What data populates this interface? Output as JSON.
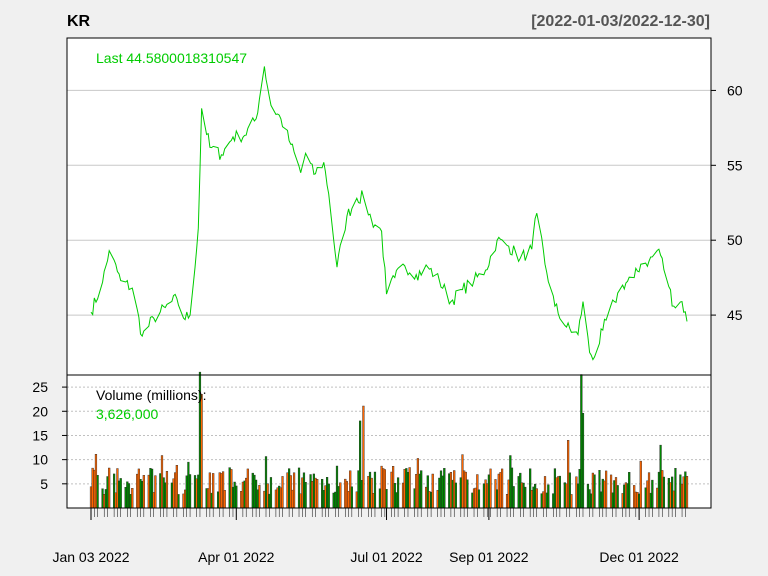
{
  "header": {
    "symbol": "KR",
    "date_range": "[2022-01-03/2022-12-30]"
  },
  "chart_data": [
    {
      "type": "line",
      "name": "price-panel",
      "last_label": "Last 44.5800018310547",
      "color": "#00cc00",
      "ylim": [
        41,
        63.5
      ],
      "yticks": [
        45,
        50,
        55,
        60
      ],
      "x_range": [
        "2022-01-03",
        "2022-12-30"
      ],
      "grid": true,
      "anchors": [
        [
          "2022-01-03",
          45.2
        ],
        [
          "2022-01-10",
          47.2
        ],
        [
          "2022-01-14",
          49.3
        ],
        [
          "2022-01-21",
          47.3
        ],
        [
          "2022-01-28",
          46.8
        ],
        [
          "2022-02-03",
          43.6
        ],
        [
          "2022-02-10",
          44.8
        ],
        [
          "2022-02-17",
          45.5
        ],
        [
          "2022-02-24",
          46.1
        ],
        [
          "2022-02-28",
          44.8
        ],
        [
          "2022-03-04",
          45.0
        ],
        [
          "2022-03-09",
          50.8
        ],
        [
          "2022-03-11",
          58.8
        ],
        [
          "2022-03-16",
          56.2
        ],
        [
          "2022-03-23",
          55.7
        ],
        [
          "2022-03-30",
          56.9
        ],
        [
          "2022-04-06",
          57.0
        ],
        [
          "2022-04-13",
          58.1
        ],
        [
          "2022-04-18",
          61.6
        ],
        [
          "2022-04-22",
          59.0
        ],
        [
          "2022-04-28",
          58.1
        ],
        [
          "2022-05-04",
          56.4
        ],
        [
          "2022-05-10",
          54.5
        ],
        [
          "2022-05-13",
          55.8
        ],
        [
          "2022-05-18",
          54.4
        ],
        [
          "2022-05-24",
          55.2
        ],
        [
          "2022-05-27",
          53.1
        ],
        [
          "2022-06-01",
          48.2
        ],
        [
          "2022-06-07",
          51.6
        ],
        [
          "2022-06-13",
          52.8
        ],
        [
          "2022-06-17",
          52.9
        ],
        [
          "2022-06-22",
          51.3
        ],
        [
          "2022-06-28",
          50.6
        ],
        [
          "2022-07-01",
          46.4
        ],
        [
          "2022-07-06",
          47.5
        ],
        [
          "2022-07-12",
          48.3
        ],
        [
          "2022-07-19",
          47.7
        ],
        [
          "2022-07-26",
          48.2
        ],
        [
          "2022-08-02",
          47.3
        ],
        [
          "2022-08-09",
          45.9
        ],
        [
          "2022-08-16",
          46.7
        ],
        [
          "2022-08-23",
          47.3
        ],
        [
          "2022-08-30",
          48.0
        ],
        [
          "2022-09-06",
          50.0
        ],
        [
          "2022-09-13",
          49.6
        ],
        [
          "2022-09-20",
          48.8
        ],
        [
          "2022-09-27",
          49.4
        ],
        [
          "2022-09-30",
          51.8
        ],
        [
          "2022-10-05",
          48.4
        ],
        [
          "2022-10-11",
          45.6
        ],
        [
          "2022-10-18",
          44.2
        ],
        [
          "2022-10-25",
          43.7
        ],
        [
          "2022-10-28",
          45.9
        ],
        [
          "2022-11-01",
          42.5
        ],
        [
          "2022-11-04",
          42.2
        ],
        [
          "2022-11-09",
          44.0
        ],
        [
          "2022-11-16",
          45.9
        ],
        [
          "2022-11-21",
          47.0
        ],
        [
          "2022-11-28",
          47.5
        ],
        [
          "2022-12-02",
          48.4
        ],
        [
          "2022-12-07",
          48.6
        ],
        [
          "2022-12-13",
          49.4
        ],
        [
          "2022-12-19",
          46.9
        ],
        [
          "2022-12-22",
          45.6
        ],
        [
          "2022-12-27",
          45.9
        ],
        [
          "2022-12-30",
          44.58
        ]
      ]
    },
    {
      "type": "bar",
      "name": "volume-panel",
      "title": "Volume (millions):",
      "last_label": "3,626,000",
      "up_color": "#008800",
      "down_color": "#ff6600",
      "ylim": [
        0,
        27.5
      ],
      "yticks": [
        5,
        10,
        15,
        20,
        25
      ],
      "spikes": [
        [
          "2022-03-10",
          28.1
        ],
        [
          "2022-03-11",
          23.5
        ],
        [
          "2022-06-15",
          18.0
        ],
        [
          "2022-06-17",
          21.1
        ],
        [
          "2022-10-19",
          14.0
        ],
        [
          "2022-10-27",
          27.6
        ],
        [
          "2022-10-28",
          19.6
        ],
        [
          "2022-12-14",
          13.0
        ]
      ]
    }
  ],
  "x_axis": {
    "ticks": [
      {
        "date": "2022-01-03",
        "label": "Jan 03 2022"
      },
      {
        "date": "2022-04-01",
        "label": "Apr 01 2022"
      },
      {
        "date": "2022-07-01",
        "label": "Jul 01 2022"
      },
      {
        "date": "2022-09-01",
        "label": "Sep 01 2022"
      },
      {
        "date": "2022-12-01",
        "label": "Dec 01 2022"
      }
    ]
  }
}
